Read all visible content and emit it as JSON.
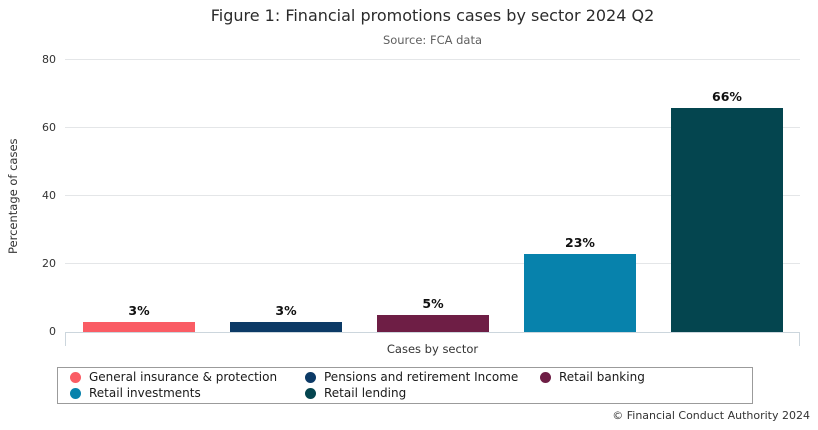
{
  "header": {
    "title": "Figure 1: Financial promotions cases by sector 2024 Q2",
    "subtitle": "Source: FCA data"
  },
  "chart_data": {
    "type": "bar",
    "title": "Figure 1: Financial promotions cases by sector 2024 Q2",
    "subtitle": "Source: FCA data",
    "categories": [
      "General insurance & protection",
      "Pensions and retirement Income",
      "Retail banking",
      "Retail investments",
      "Retail lending"
    ],
    "values": [
      3,
      3,
      5,
      23,
      66
    ],
    "value_labels": [
      "3%",
      "3%",
      "5%",
      "23%",
      "66%"
    ],
    "colors": [
      "#FA5C64",
      "#0C3A66",
      "#6E1E45",
      "#0782AC",
      "#04454F"
    ],
    "xlabel": "Cases by sector",
    "ylabel": "Percentage of cases",
    "ylim": [
      0,
      80
    ],
    "yticks": [
      0,
      20,
      40,
      60,
      80
    ],
    "grid": true,
    "legend_position": "bottom"
  },
  "footer": {
    "copyright": "© Financial Conduct Authority 2024"
  }
}
